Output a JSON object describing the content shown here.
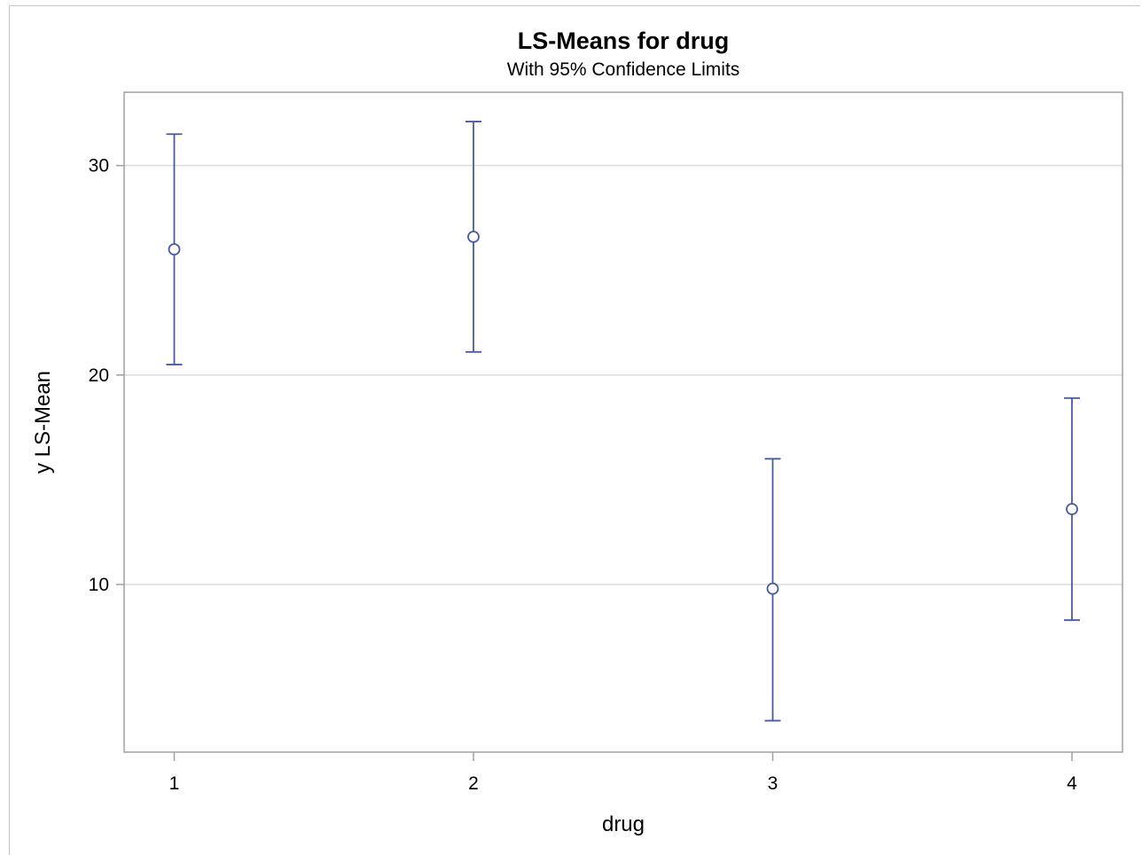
{
  "chart_data": {
    "type": "scatter",
    "title": "LS-Means for drug",
    "subtitle": "With 95% Confidence Limits",
    "xlabel": "drug",
    "ylabel": "y LS-Mean",
    "categories": [
      "1",
      "2",
      "3",
      "4"
    ],
    "y_ticks": [
      "10",
      "20",
      "30"
    ],
    "ylim": [
      2,
      33.5
    ],
    "grid": true,
    "series": [
      {
        "values": [
          26.0,
          26.6,
          9.8,
          13.6
        ],
        "lower": [
          20.5,
          21.1,
          3.5,
          8.3
        ],
        "upper": [
          31.5,
          32.1,
          16.0,
          18.9
        ]
      }
    ],
    "colors": {
      "marker": "#4a5aa0",
      "grid": "#dcdcdc",
      "frame": "#a0a0a0"
    }
  }
}
